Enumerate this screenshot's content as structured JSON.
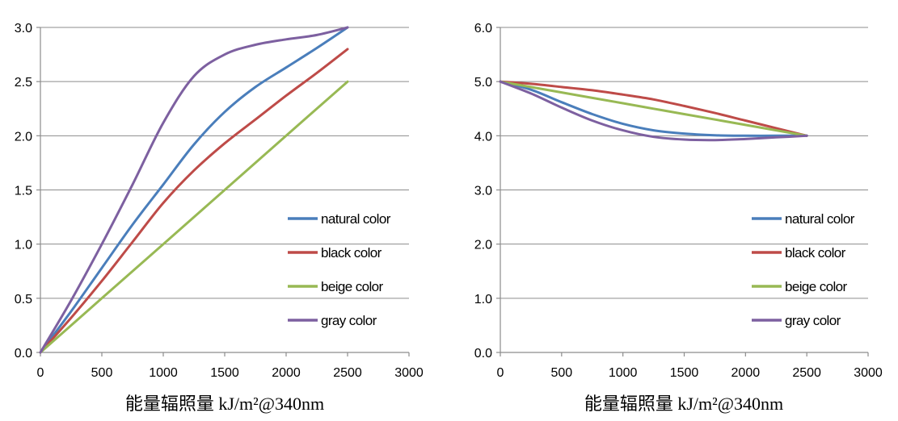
{
  "chart_data": [
    {
      "type": "line",
      "title": "",
      "xlabel": "能量辐照量 kJ/m²@340nm",
      "ylabel": "",
      "xlim": [
        0,
        3000
      ],
      "ylim": [
        0,
        3.0
      ],
      "x_ticks": [
        "0",
        "500",
        "1000",
        "1500",
        "2000",
        "2500",
        "3000"
      ],
      "y_ticks": [
        "0.0",
        "0.5",
        "1.0",
        "1.5",
        "2.0",
        "2.5",
        "3.0"
      ],
      "grid": "horizontal",
      "legend_position": "right-middle",
      "series": [
        {
          "name": "natural color",
          "color": "#4a7ebb",
          "x": [
            0,
            250,
            500,
            750,
            1000,
            1250,
            1500,
            1750,
            2000,
            2250,
            2500
          ],
          "y": [
            0,
            0.38,
            0.78,
            1.18,
            1.55,
            1.92,
            2.22,
            2.45,
            2.63,
            2.81,
            3.0
          ]
        },
        {
          "name": "black color",
          "color": "#be4b48",
          "x": [
            0,
            250,
            500,
            750,
            1000,
            1250,
            1500,
            1750,
            2000,
            2250,
            2500
          ],
          "y": [
            0,
            0.32,
            0.66,
            1.02,
            1.38,
            1.68,
            1.93,
            2.15,
            2.37,
            2.58,
            2.8
          ]
        },
        {
          "name": "beige color",
          "color": "#98b954",
          "x": [
            0,
            500,
            1000,
            1500,
            2000,
            2500
          ],
          "y": [
            0,
            0.5,
            1.0,
            1.5,
            2.0,
            2.5
          ]
        },
        {
          "name": "gray color",
          "color": "#7d60a0",
          "x": [
            0,
            250,
            500,
            750,
            1000,
            1250,
            1500,
            1750,
            2000,
            2250,
            2500
          ],
          "y": [
            0,
            0.48,
            1.0,
            1.55,
            2.12,
            2.55,
            2.75,
            2.84,
            2.89,
            2.93,
            3.0
          ]
        }
      ]
    },
    {
      "type": "line",
      "title": "",
      "xlabel": "能量辐照量 kJ/m²@340nm",
      "ylabel": "",
      "xlim": [
        0,
        3000
      ],
      "ylim": [
        0,
        6.0
      ],
      "x_ticks": [
        "0",
        "500",
        "1000",
        "1500",
        "2000",
        "2500",
        "3000"
      ],
      "y_ticks": [
        "0.0",
        "1.0",
        "2.0",
        "3.0",
        "4.0",
        "5.0",
        "6.0"
      ],
      "grid": "horizontal",
      "legend_position": "right-middle",
      "series": [
        {
          "name": "natural color",
          "color": "#4a7ebb",
          "x": [
            0,
            250,
            500,
            750,
            1000,
            1250,
            1500,
            1750,
            2000,
            2250,
            2500
          ],
          "y": [
            5.0,
            4.85,
            4.62,
            4.4,
            4.22,
            4.1,
            4.04,
            4.01,
            4.0,
            4.0,
            4.0
          ]
        },
        {
          "name": "black color",
          "color": "#be4b48",
          "x": [
            0,
            250,
            500,
            750,
            1000,
            1250,
            1500,
            1750,
            2000,
            2250,
            2500
          ],
          "y": [
            5.0,
            4.96,
            4.9,
            4.84,
            4.76,
            4.67,
            4.55,
            4.42,
            4.28,
            4.14,
            4.0
          ]
        },
        {
          "name": "beige color",
          "color": "#98b954",
          "x": [
            0,
            500,
            1000,
            1250,
            1500,
            2000,
            2500
          ],
          "y": [
            5.0,
            4.8,
            4.6,
            4.5,
            4.4,
            4.2,
            4.0
          ]
        },
        {
          "name": "gray color",
          "color": "#7d60a0",
          "x": [
            0,
            250,
            500,
            750,
            1000,
            1250,
            1500,
            1750,
            2000,
            2250,
            2500
          ],
          "y": [
            5.0,
            4.78,
            4.52,
            4.28,
            4.1,
            3.98,
            3.93,
            3.92,
            3.94,
            3.97,
            4.0
          ]
        }
      ]
    }
  ]
}
